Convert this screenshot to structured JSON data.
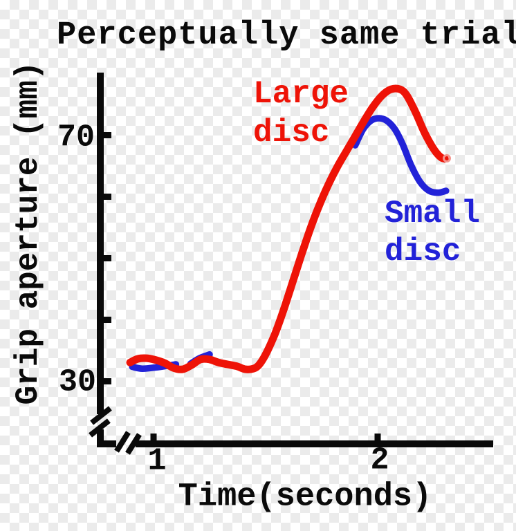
{
  "title": "Perceptually same trial",
  "y_axis": {
    "label": "Grip aperture (mm)",
    "tick_70": "70",
    "tick_30": "30"
  },
  "x_axis": {
    "label": "Time(seconds)",
    "tick_1": "1",
    "tick_2": "2"
  },
  "legend": {
    "large": {
      "line1": "Large",
      "line2": "disc",
      "color": "#ee1307"
    },
    "small": {
      "line1": "Small",
      "line2": "disc",
      "color": "#2222d8"
    }
  },
  "chart_data": {
    "type": "line",
    "title": "Perceptually same trial",
    "xlabel": "Time(seconds)",
    "ylabel": "Grip aperture (mm)",
    "x_ticks_labeled": [
      1,
      2
    ],
    "y_ticks_labeled": [
      70,
      30
    ],
    "y_ticks_unlabeled": [
      60,
      50,
      40
    ],
    "axis_breaks": {
      "x_axis": true,
      "y_axis": true
    },
    "ylim_shown": [
      30,
      80
    ],
    "xlim_shown": [
      0.85,
      2.35
    ],
    "grid": false,
    "legend_position": "inline-annotations",
    "series": [
      {
        "name": "Small disc",
        "color": "#2222d8",
        "stroke_width": 9.5,
        "note": "hidden behind Large disc curve during the rise (t≈1.3–1.9 s)",
        "segments": [
          [
            [
              0.905,
              32.3
            ],
            [
              0.95,
              32.0
            ],
            [
              1.01,
              32.2
            ],
            [
              1.065,
              32.5
            ],
            [
              1.1,
              32.7
            ]
          ],
          [
            [
              1.165,
              32.8
            ],
            [
              1.205,
              33.7
            ],
            [
              1.25,
              34.3
            ]
          ],
          [
            [
              1.9,
              68.3
            ],
            [
              1.935,
              70.9
            ],
            [
              1.97,
              72.3
            ],
            [
              2.005,
              72.7
            ],
            [
              2.04,
              72.3
            ],
            [
              2.075,
              71.0
            ],
            [
              2.11,
              68.6
            ],
            [
              2.15,
              65.0
            ],
            [
              2.19,
              62.3
            ],
            [
              2.23,
              60.9
            ],
            [
              2.27,
              60.6
            ],
            [
              2.305,
              60.9
            ]
          ]
        ]
      },
      {
        "name": "Large disc",
        "color": "#ee1307",
        "stroke_width": 11,
        "segments": [
          [
            [
              0.895,
              33.0
            ],
            [
              0.93,
              33.6
            ],
            [
              0.97,
              33.7
            ],
            [
              1.01,
              33.4
            ],
            [
              1.05,
              32.9
            ],
            [
              1.09,
              32.1
            ],
            [
              1.13,
              31.9
            ],
            [
              1.17,
              32.6
            ],
            [
              1.21,
              33.5
            ],
            [
              1.25,
              33.5
            ],
            [
              1.29,
              33.0
            ],
            [
              1.33,
              32.7
            ],
            [
              1.37,
              32.4
            ],
            [
              1.41,
              31.9
            ],
            [
              1.445,
              32.0
            ],
            [
              1.47,
              32.6
            ],
            [
              1.5,
              34.3
            ],
            [
              1.54,
              37.5
            ],
            [
              1.58,
              41.5
            ],
            [
              1.62,
              46.0
            ],
            [
              1.66,
              50.5
            ],
            [
              1.7,
              54.8
            ],
            [
              1.74,
              58.6
            ],
            [
              1.78,
              61.9
            ],
            [
              1.82,
              64.8
            ],
            [
              1.86,
              67.3
            ],
            [
              1.9,
              69.8
            ],
            [
              1.94,
              72.3
            ],
            [
              1.98,
              74.6
            ],
            [
              2.02,
              76.4
            ],
            [
              2.06,
              77.4
            ],
            [
              2.1,
              77.4
            ],
            [
              2.13,
              76.4
            ],
            [
              2.17,
              73.6
            ],
            [
              2.21,
              70.3
            ],
            [
              2.25,
              67.7
            ],
            [
              2.28,
              66.4
            ],
            [
              2.3,
              66.1
            ]
          ]
        ]
      }
    ]
  }
}
